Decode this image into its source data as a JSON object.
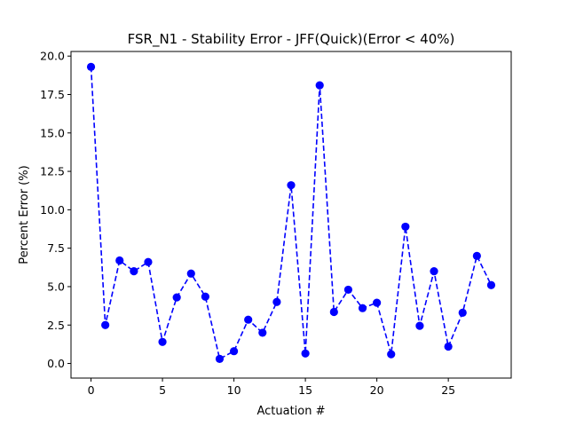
{
  "chart_data": {
    "type": "line",
    "title": "FSR_N1 - Stability Error - JFF(Quick)(Error < 40%)",
    "xlabel": "Actuation #",
    "ylabel": "Percent Error (%)",
    "xlim": [
      -1.4,
      29.4
    ],
    "ylim": [
      -0.95,
      20.3
    ],
    "xticks": [
      0,
      5,
      10,
      15,
      20,
      25
    ],
    "xtick_labels": [
      "0",
      "5",
      "10",
      "15",
      "20",
      "25"
    ],
    "yticks": [
      0.0,
      2.5,
      5.0,
      7.5,
      10.0,
      12.5,
      15.0,
      17.5,
      20.0
    ],
    "ytick_labels": [
      "0.0",
      "2.5",
      "5.0",
      "7.5",
      "10.0",
      "12.5",
      "15.0",
      "17.5",
      "20.0"
    ],
    "grid": false,
    "legend": "none",
    "series": [
      {
        "color": "#0000ff",
        "line_style": "dashed",
        "marker": "circle",
        "x": [
          0,
          1,
          2,
          3,
          4,
          5,
          6,
          7,
          8,
          9,
          10,
          11,
          12,
          13,
          14,
          15,
          16,
          17,
          18,
          19,
          20,
          21,
          22,
          23,
          24,
          25,
          26,
          27,
          28
        ],
        "values": [
          19.3,
          2.5,
          6.7,
          6.0,
          6.6,
          1.4,
          4.3,
          5.85,
          4.35,
          0.3,
          0.8,
          2.85,
          2.0,
          4.0,
          11.6,
          0.65,
          18.1,
          3.35,
          4.8,
          3.6,
          3.95,
          0.6,
          8.9,
          2.45,
          6.0,
          1.1,
          3.3,
          7.0,
          5.1
        ]
      }
    ]
  }
}
